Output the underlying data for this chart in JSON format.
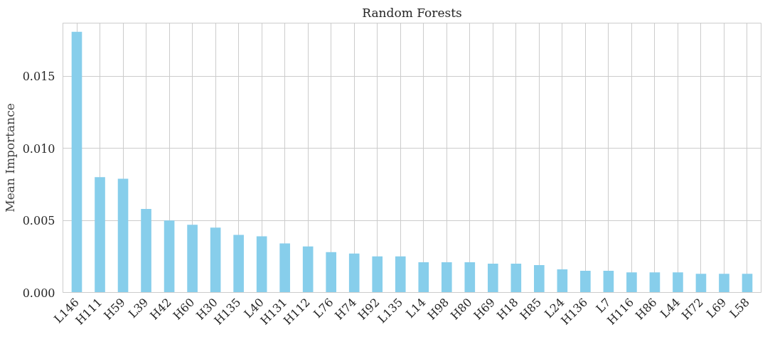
{
  "chart_data": {
    "type": "bar",
    "title": "Random Forests",
    "ylabel": "Mean Importance",
    "categories": [
      "L146",
      "H111",
      "H59",
      "L39",
      "H42",
      "H60",
      "H30",
      "H135",
      "L40",
      "H131",
      "H112",
      "L76",
      "H74",
      "H92",
      "L135",
      "L14",
      "H98",
      "H80",
      "H69",
      "H18",
      "H85",
      "L24",
      "H136",
      "L7",
      "H116",
      "H86",
      "L44",
      "H72",
      "L69",
      "L58"
    ],
    "values": [
      0.0181,
      0.008,
      0.0079,
      0.0058,
      0.005,
      0.0047,
      0.0045,
      0.004,
      0.0039,
      0.0034,
      0.0032,
      0.0028,
      0.0027,
      0.0025,
      0.0025,
      0.0021,
      0.0021,
      0.0021,
      0.002,
      0.002,
      0.0019,
      0.0016,
      0.0015,
      0.0015,
      0.0014,
      0.0014,
      0.0014,
      0.0013,
      0.0013,
      0.0013
    ],
    "color": "#87ceeb",
    "ylim": [
      0,
      0.0187
    ],
    "yticks": [
      {
        "value": 0,
        "label": "0.000"
      },
      {
        "value": 0.005,
        "label": "0.005"
      },
      {
        "value": 0.01,
        "label": "0.010"
      },
      {
        "value": 0.015,
        "label": "0.015"
      }
    ],
    "grid": true
  }
}
